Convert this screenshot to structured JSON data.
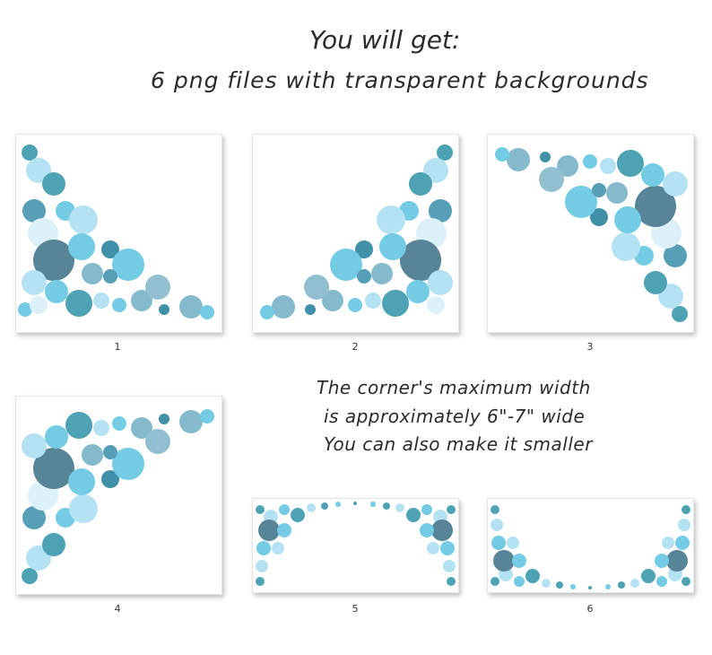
{
  "header": {
    "title": "You will get:",
    "subtitle": "6 png files with transparent backgrounds"
  },
  "note": {
    "line1": "The corner's maximum width",
    "line2": "is approximately 6\"-7\" wide",
    "line3": "You can also make it smaller"
  },
  "previews": [
    {
      "label": "1"
    },
    {
      "label": "2"
    },
    {
      "label": "3"
    },
    {
      "label": "4"
    },
    {
      "label": "5"
    },
    {
      "label": "6"
    }
  ],
  "colors": {
    "dark_teal": "#3a6f86",
    "teal": "#2f93a8",
    "sky": "#5cc3e0",
    "light": "#a9def0",
    "pale": "#d6eff8"
  }
}
